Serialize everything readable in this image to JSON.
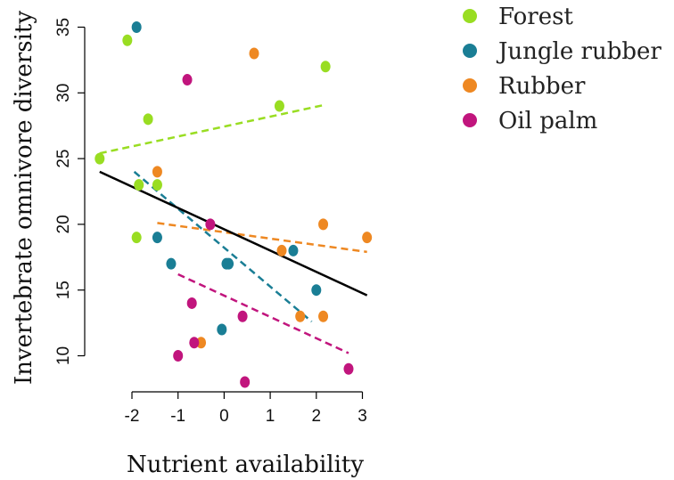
{
  "chart_data": {
    "type": "scatter",
    "xlabel": "Nutrient availability",
    "ylabel": "Invertebrate omnivore diversity",
    "xlim": [
      -2.75,
      3.1
    ],
    "ylim": [
      8,
      36
    ],
    "xticks": [
      -2,
      -1,
      0,
      1,
      2,
      3
    ],
    "yticks": [
      10,
      15,
      20,
      25,
      30,
      35
    ],
    "legend_position": "top-right",
    "series": [
      {
        "name": "Forest",
        "color": "#99dd22",
        "points": [
          [
            -2.7,
            25
          ],
          [
            -2.1,
            34
          ],
          [
            -1.9,
            19
          ],
          [
            -1.85,
            23
          ],
          [
            -1.65,
            28
          ],
          [
            -1.45,
            23
          ],
          [
            1.2,
            29
          ],
          [
            2.2,
            32
          ]
        ],
        "trend": {
          "x": [
            -2.7,
            2.2
          ],
          "y": [
            25.4,
            29.1
          ]
        }
      },
      {
        "name": "Jungle rubber",
        "color": "#1a7e95",
        "points": [
          [
            -1.9,
            35
          ],
          [
            -1.45,
            19
          ],
          [
            -1.15,
            17
          ],
          [
            -0.05,
            12
          ],
          [
            0.05,
            17
          ],
          [
            0.1,
            17
          ],
          [
            1.5,
            18
          ],
          [
            2.0,
            15
          ]
        ],
        "trend": {
          "x": [
            -1.95,
            1.9
          ],
          "y": [
            24,
            12.6
          ]
        }
      },
      {
        "name": "Rubber",
        "color": "#ee8822",
        "points": [
          [
            -1.45,
            24
          ],
          [
            -0.5,
            11
          ],
          [
            0.65,
            33
          ],
          [
            1.25,
            18
          ],
          [
            1.65,
            13
          ],
          [
            2.15,
            20
          ],
          [
            2.15,
            13
          ],
          [
            3.1,
            19
          ]
        ],
        "trend": {
          "x": [
            -1.45,
            3.1
          ],
          "y": [
            20.1,
            17.9
          ]
        }
      },
      {
        "name": "Oil palm",
        "color": "#c1157d",
        "points": [
          [
            -1.0,
            10
          ],
          [
            -0.8,
            31
          ],
          [
            -0.7,
            14
          ],
          [
            -0.65,
            11
          ],
          [
            -0.3,
            20
          ],
          [
            0.4,
            13
          ],
          [
            0.45,
            8
          ],
          [
            2.7,
            9
          ]
        ],
        "trend": {
          "x": [
            -1.0,
            2.7
          ],
          "y": [
            16.2,
            10.2
          ]
        }
      }
    ],
    "overall_trend": {
      "x": [
        -2.7,
        3.1
      ],
      "y": [
        24,
        14.6
      ],
      "color": "#000000"
    }
  }
}
